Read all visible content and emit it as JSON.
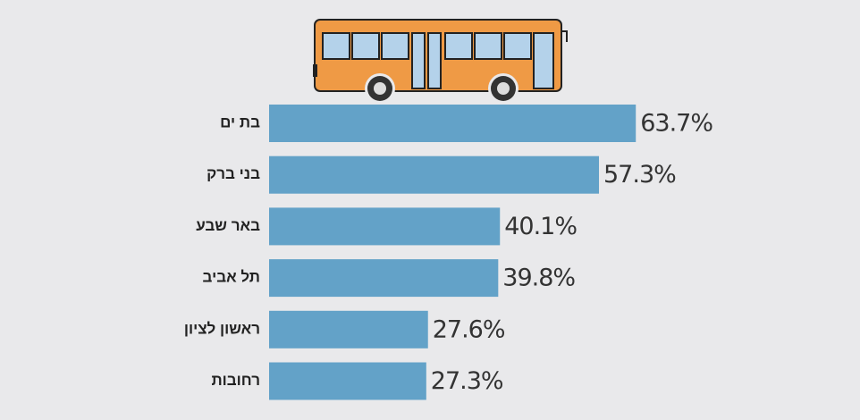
{
  "chart_data": {
    "type": "bar",
    "categories": [
      "בת ים",
      "בני ברק",
      "באר שבע",
      "תל אביב",
      "ראשון לציון",
      "רחובות"
    ],
    "values": [
      63.7,
      57.3,
      40.1,
      39.8,
      27.6,
      27.3
    ],
    "value_labels": [
      "63.7%",
      "57.3%",
      "40.1%",
      "39.8%",
      "27.6%",
      "27.3%"
    ],
    "color": "#63a2c8"
  }
}
